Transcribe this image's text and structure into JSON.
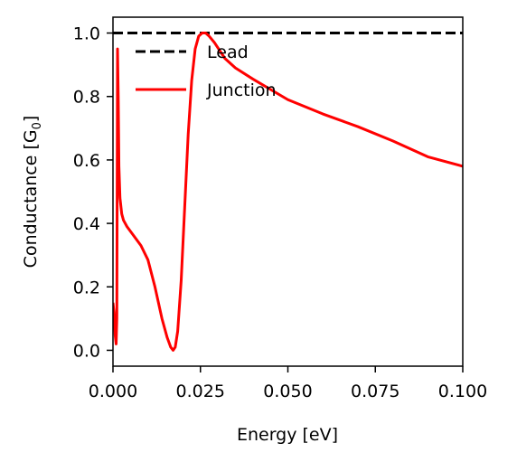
{
  "chart_data": {
    "type": "line",
    "title": "",
    "xlabel": "Energy [eV]",
    "ylabel_main": "Conductance [G",
    "ylabel_sub": "0",
    "ylabel_close": "]",
    "xlim": [
      0.0,
      0.1
    ],
    "ylim": [
      -0.05,
      1.05
    ],
    "xticks": [
      {
        "value": 0.0,
        "label": "0.000"
      },
      {
        "value": 0.025,
        "label": "0.025"
      },
      {
        "value": 0.05,
        "label": "0.050"
      },
      {
        "value": 0.075,
        "label": "0.075"
      },
      {
        "value": 0.1,
        "label": "0.100"
      }
    ],
    "yticks": [
      {
        "value": 0.0,
        "label": "0.0"
      },
      {
        "value": 0.2,
        "label": "0.2"
      },
      {
        "value": 0.4,
        "label": "0.4"
      },
      {
        "value": 0.6,
        "label": "0.6"
      },
      {
        "value": 0.8,
        "label": "0.8"
      },
      {
        "value": 1.0,
        "label": "1.0"
      }
    ],
    "grid": false,
    "legend_position": "upper-left",
    "series": [
      {
        "name": "Lead",
        "color": "#000000",
        "style": "dashed",
        "x": [
          0.0,
          0.1
        ],
        "y": [
          1.0,
          1.0
        ]
      },
      {
        "name": "Junction",
        "color": "#ff0000",
        "style": "solid",
        "x": [
          0.0,
          0.0003,
          0.0006,
          0.0009,
          0.0011,
          0.0013,
          0.0015,
          0.0017,
          0.002,
          0.0025,
          0.003,
          0.004,
          0.005,
          0.006,
          0.008,
          0.01,
          0.012,
          0.014,
          0.0155,
          0.0165,
          0.0172,
          0.0178,
          0.0185,
          0.0195,
          0.0205,
          0.0215,
          0.0225,
          0.0235,
          0.0245,
          0.0255,
          0.0265,
          0.0275,
          0.029,
          0.0305,
          0.032,
          0.035,
          0.04,
          0.05,
          0.06,
          0.07,
          0.08,
          0.09,
          0.1
        ],
        "y": [
          0.15,
          0.12,
          0.05,
          0.02,
          0.1,
          0.95,
          0.8,
          0.58,
          0.48,
          0.43,
          0.41,
          0.39,
          0.375,
          0.36,
          0.33,
          0.285,
          0.2,
          0.1,
          0.04,
          0.01,
          0.0,
          0.01,
          0.06,
          0.22,
          0.45,
          0.68,
          0.85,
          0.95,
          0.99,
          1.0,
          1.0,
          0.99,
          0.97,
          0.945,
          0.92,
          0.89,
          0.855,
          0.79,
          0.745,
          0.705,
          0.66,
          0.61,
          0.58
        ]
      }
    ]
  }
}
